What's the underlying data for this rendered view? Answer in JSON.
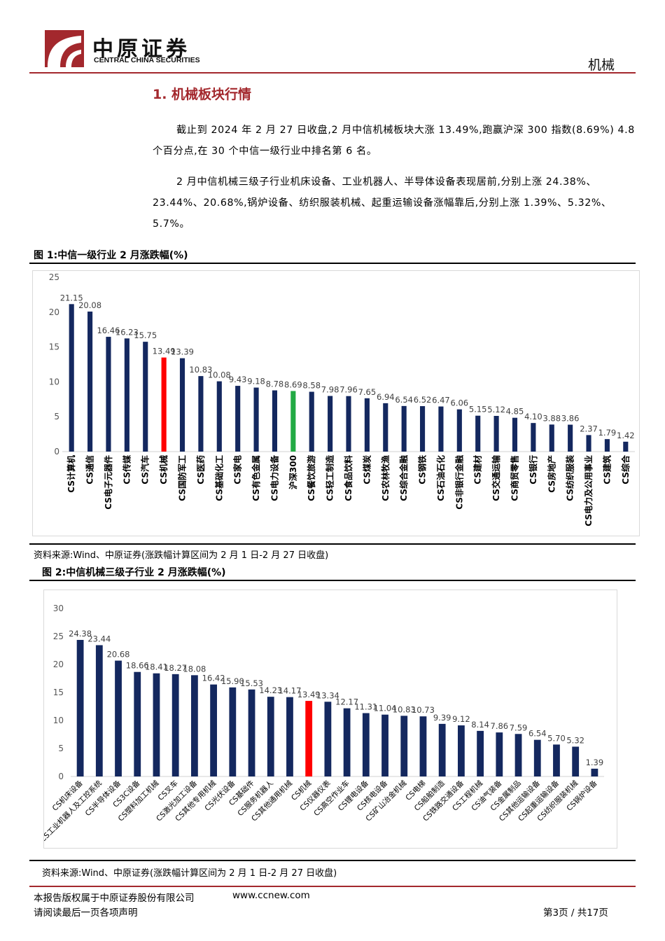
{
  "header": {
    "logo_cn": "中原证券",
    "logo_en": "CENTRAL CHINA SECURITIES",
    "category": "机械"
  },
  "section": {
    "title": "1. 机械板块行情",
    "para1": "截止到 2024 年 2 月 27 日收盘,2 月中信机械板块大涨 13.49%,跑赢沪深 300 指数(8.69%) 4.8 个百分点,在 30 个中信一级行业中排名第 6 名。",
    "para2": "2 月中信机械三级子行业机床设备、工业机器人、半导体设备表现居前,分别上涨 24.38%、23.44%、20.68%,锅炉设备、纺织服装机械、起重运输设备涨幅靠后,分别上涨 1.39%、5.32%、5.7%。"
  },
  "figure1": {
    "title": "图 1:中信一级行业 2 月涨跌幅(%)",
    "source": "资料来源:Wind、中原证券(涨跌幅计算区间为 2 月 1 日-2 月 27 日收盘)"
  },
  "figure2": {
    "title": "图 2:中信机械三级子行业 2 月涨跌幅(%)",
    "source": "资料来源:Wind、中原证券(涨跌幅计算区间为 2 月 1 日-2 月 27 日收盘)"
  },
  "footer": {
    "copyright": "本报告版权属于中原证券股份有限公司",
    "website": "www.ccnew.com",
    "disclaimer": "请阅读最后一页各项声明",
    "page": "第3页 / 共17页"
  },
  "colors": {
    "brand_red": "#a3282d",
    "bar_default": "#14285f",
    "bar_highlight": "#ff0000",
    "bar_benchmark": "#22aa44"
  },
  "chart_data": [
    {
      "type": "bar",
      "ylim": [
        0,
        25
      ],
      "yticks": [
        0,
        5,
        10,
        15,
        20,
        25
      ],
      "grid": false,
      "categories": [
        "CS计算机",
        "CS通信",
        "CS电子元器件",
        "CS传媒",
        "CS汽车",
        "CS机械",
        "CS国防军工",
        "CS医药",
        "CS基础化工",
        "CS家电",
        "CS有色金属",
        "CS电力设备",
        "沪深300",
        "CS餐饮旅游",
        "CS轻工制造",
        "CS食品饮料",
        "CS煤炭",
        "CS农林牧渔",
        "CS综合金融",
        "CS钢铁",
        "CS石油石化",
        "CS非银行金融",
        "CS建材",
        "CS交通运输",
        "CS商贸零售",
        "CS银行",
        "CS房地产",
        "CS纺织服装",
        "CS电力及公用事业",
        "CS建筑",
        "CS综合"
      ],
      "values": [
        21.15,
        20.08,
        16.46,
        16.23,
        15.75,
        13.49,
        13.39,
        10.83,
        10.08,
        9.43,
        9.18,
        8.78,
        8.69,
        8.58,
        7.98,
        7.96,
        7.65,
        6.94,
        6.54,
        6.52,
        6.47,
        6.06,
        5.15,
        5.12,
        4.85,
        4.1,
        3.88,
        3.86,
        2.37,
        1.79,
        1.42
      ],
      "labels": [
        "21.15",
        "20.08",
        "16.46",
        "16.23",
        "15.75",
        "13.49",
        "13.39",
        "10.83",
        "10.08",
        "9.43",
        "9.18",
        "8.78",
        "8.69",
        "8.58",
        "7.98",
        "7.96",
        "7.65",
        "6.94",
        "6.54",
        "6.52",
        "6.47",
        "6.06",
        "5.15",
        "5.12",
        "4.85",
        "4.10",
        "3.88",
        "3.86",
        "2.37",
        "1.79",
        "1.42"
      ],
      "highlight": {
        "CS机械": "#ff0000",
        "沪深300": "#22aa44"
      }
    },
    {
      "type": "bar",
      "ylim": [
        0,
        30
      ],
      "yticks": [
        0,
        5,
        10,
        15,
        20,
        25,
        30
      ],
      "grid": false,
      "categories": [
        "CS机床设备",
        "CS工业机器人及工控系统",
        "CS半导体设备",
        "CS3C设备",
        "CS塑料加工机械",
        "CS叉车",
        "CS激光加工设备",
        "CS其他专用机械",
        "CS光伏设备",
        "CS基础件",
        "CS服务机器人",
        "CS其他通用机械",
        "CS机械",
        "CS仪器仪表",
        "CS高空作业车",
        "CS锂电设备",
        "CS核电设备",
        "CS矿山冶金机械",
        "CS电梯",
        "CS船舶制造",
        "CS铁路交通设备",
        "CS工程机械",
        "CS油气装备",
        "CS金属制品",
        "CS其他运输设备",
        "CS起重运输设备",
        "CS纺织服装机械",
        "CS锅炉设备"
      ],
      "values": [
        24.38,
        23.44,
        20.68,
        18.66,
        18.41,
        18.27,
        18.08,
        16.42,
        15.9,
        15.53,
        14.23,
        14.17,
        13.49,
        13.34,
        12.17,
        11.31,
        11.04,
        10.83,
        10.73,
        9.39,
        9.12,
        8.14,
        7.86,
        7.59,
        6.54,
        5.7,
        5.32,
        1.39
      ],
      "labels": [
        "24.38",
        "23.44",
        "20.68",
        "18.66",
        "18.41",
        "18.27",
        "18.08",
        "16.42",
        "15.90",
        "15.53",
        "14.23",
        "14.17",
        "13.49",
        "13.34",
        "12.17",
        "11.31",
        "11.04",
        "10.83",
        "10.73",
        "9.39",
        "9.12",
        "8.14",
        "7.86",
        "7.59",
        "6.54",
        "5.70",
        "5.32",
        "1.39"
      ],
      "highlight": {
        "CS机械": "#ff0000"
      }
    }
  ]
}
